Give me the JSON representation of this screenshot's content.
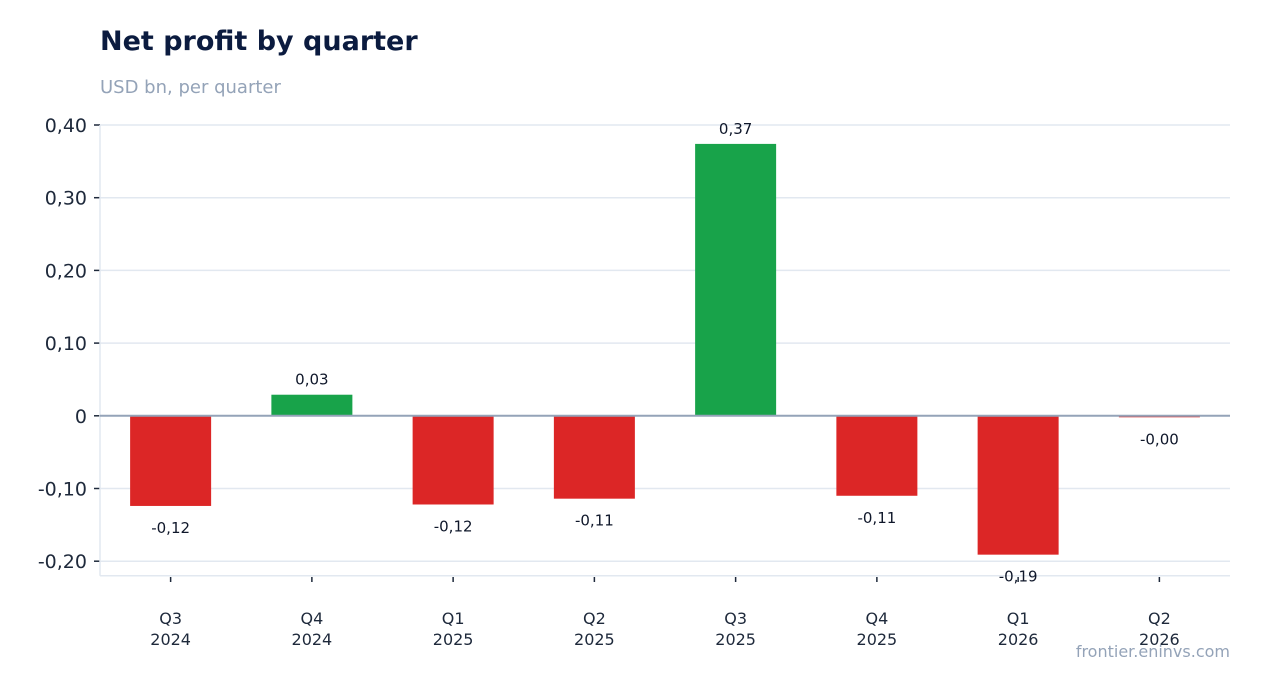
{
  "title": "Net profit by quarter",
  "subtitle": "USD bn, per quarter",
  "credit": "frontier.eninvs.com",
  "colors": {
    "positive": "#18a34a",
    "negative": "#dc2626",
    "grid": "#e2e8f0",
    "zero_line": "#94a3b8"
  },
  "chart_data": {
    "type": "bar",
    "title": "Net profit by quarter",
    "subtitle": "USD bn, per quarter",
    "categories": [
      [
        "Q3",
        "2024"
      ],
      [
        "Q4",
        "2024"
      ],
      [
        "Q1",
        "2025"
      ],
      [
        "Q2",
        "2025"
      ],
      [
        "Q3",
        "2025"
      ],
      [
        "Q4",
        "2025"
      ],
      [
        "Q1",
        "2026"
      ],
      [
        "Q2",
        "2026"
      ]
    ],
    "values": [
      -0.124,
      0.029,
      -0.122,
      -0.114,
      0.374,
      -0.11,
      -0.191,
      -0.002
    ],
    "value_labels": [
      "-0,12",
      "0,03",
      "-0,12",
      "-0,11",
      "0,37",
      "-0,11",
      "-0,19",
      "-0,00"
    ],
    "yticks": [
      0.4,
      0.3,
      0.2,
      0.1,
      0,
      -0.1,
      -0.2
    ],
    "ytick_labels": [
      "0,40",
      "0,30",
      "0,20",
      "0,10",
      "0",
      "-0,10",
      "-0,20"
    ],
    "ylim": [
      -0.22,
      0.4
    ],
    "grid": true,
    "legend": "none"
  }
}
